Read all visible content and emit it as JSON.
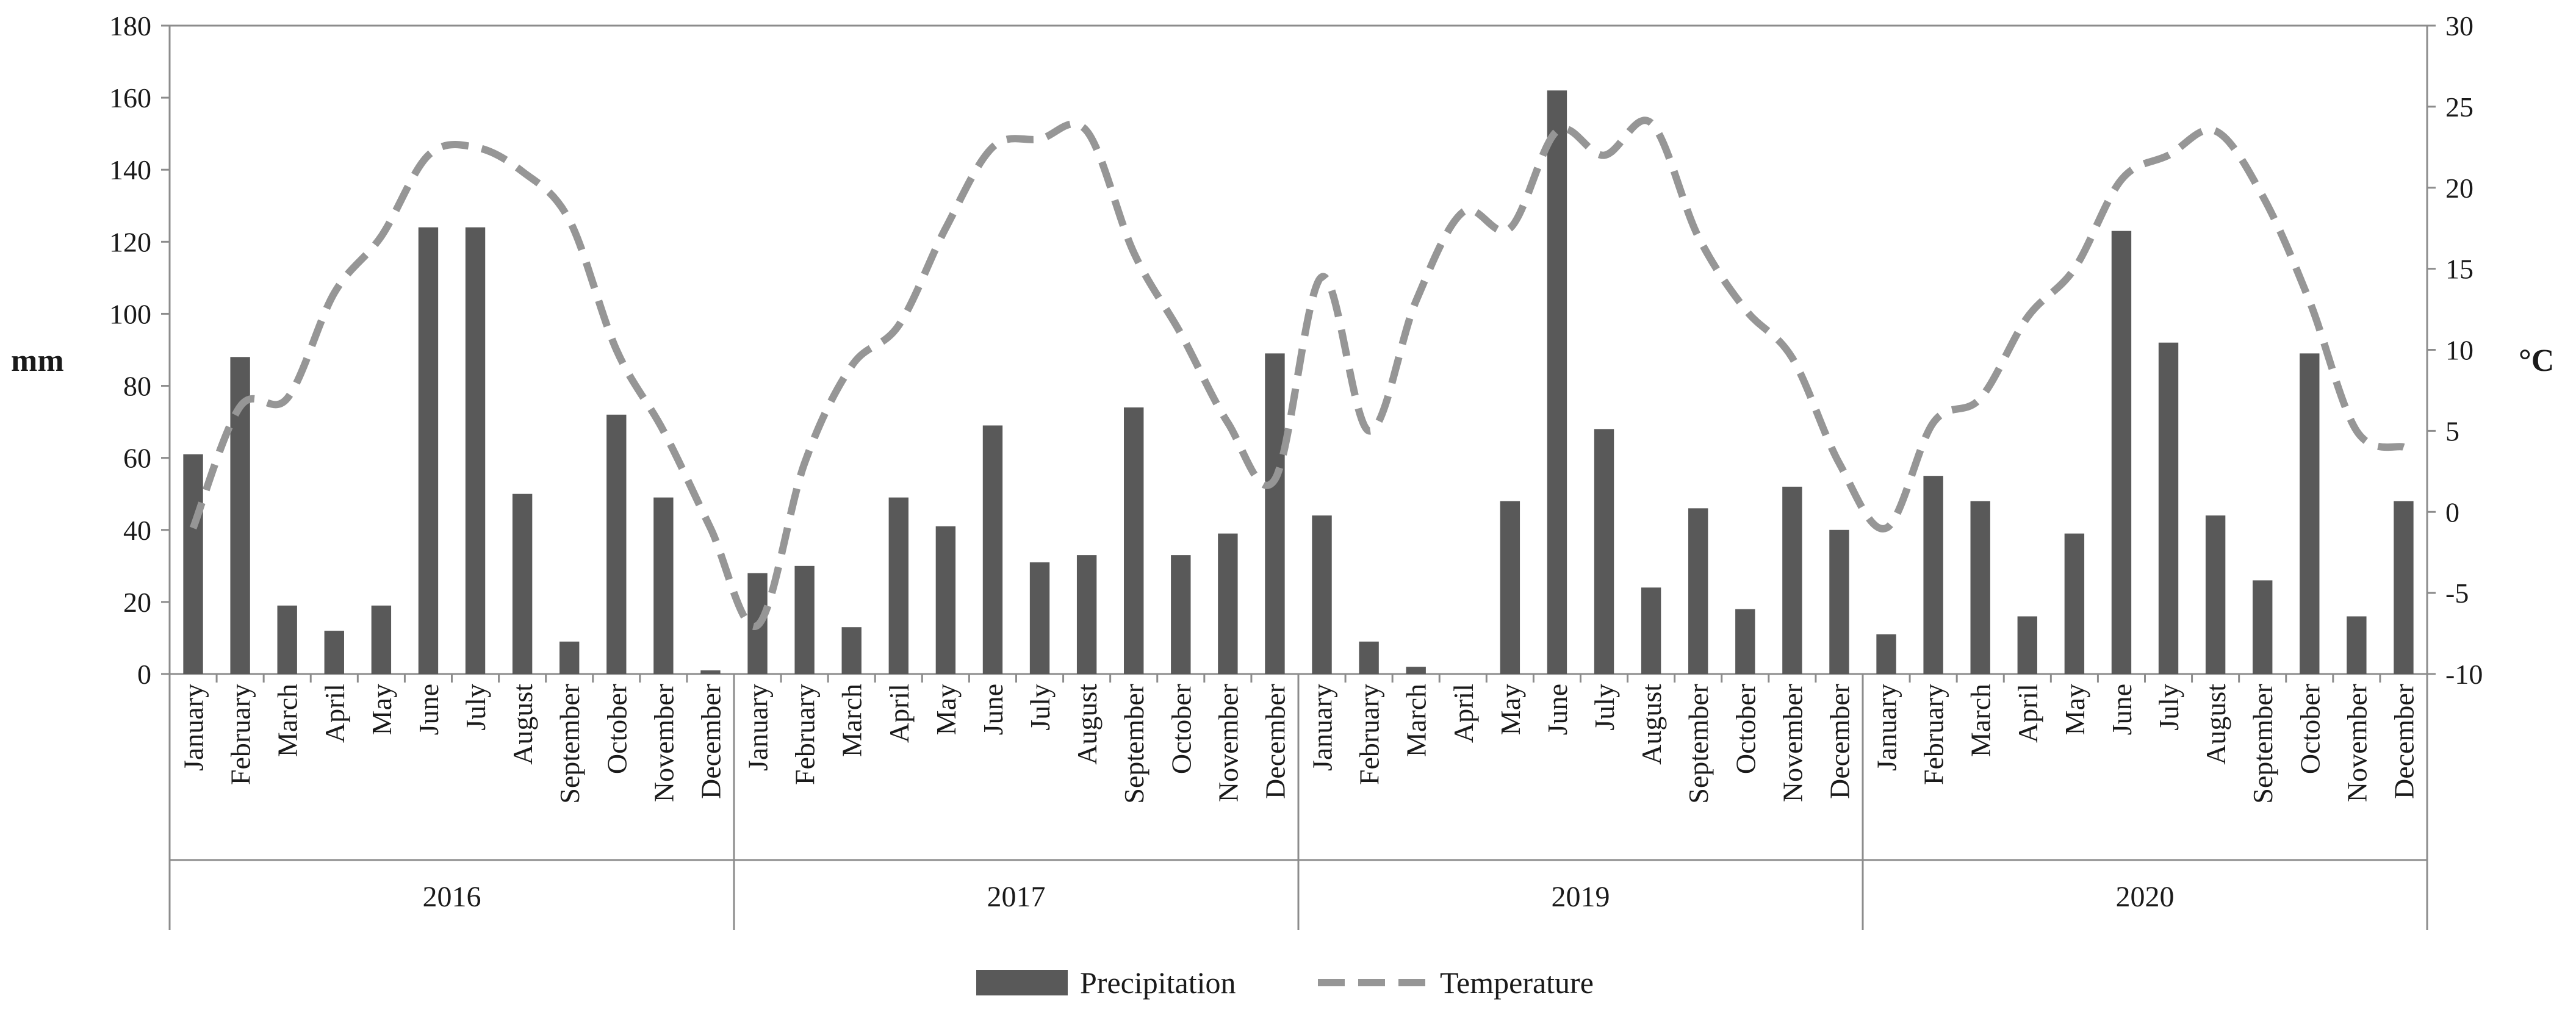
{
  "chart_data": {
    "type": "bar+line",
    "title": "",
    "ylabel_left": "mm",
    "ylabel_right": "°C",
    "ylim_left": [
      0,
      180
    ],
    "yticks_left": [
      0,
      20,
      40,
      60,
      80,
      100,
      120,
      140,
      160,
      180
    ],
    "ylim_right": [
      -10,
      30
    ],
    "yticks_right": [
      -10,
      -5,
      0,
      5,
      10,
      15,
      20,
      25,
      30
    ],
    "years": [
      "2016",
      "2017",
      "2019",
      "2020"
    ],
    "months": [
      "January",
      "February",
      "March",
      "April",
      "May",
      "June",
      "July",
      "August",
      "September",
      "October",
      "November",
      "December"
    ],
    "series": [
      {
        "name": "Precipitation",
        "kind": "bar",
        "axis": "left",
        "color": "#595959",
        "values": [
          61,
          88,
          19,
          12,
          19,
          124,
          124,
          50,
          9,
          72,
          49,
          1,
          28,
          30,
          13,
          49,
          41,
          69,
          31,
          33,
          74,
          33,
          39,
          89,
          44,
          9,
          2,
          0,
          48,
          162,
          68,
          24,
          46,
          18,
          52,
          40,
          11,
          55,
          48,
          16,
          39,
          123,
          92,
          44,
          26,
          89,
          16,
          48
        ]
      },
      {
        "name": "Temperature",
        "kind": "line",
        "axis": "right",
        "color": "#969696",
        "dash": "dashed",
        "values": [
          -1,
          6.5,
          7,
          13.5,
          17,
          22,
          22.5,
          21,
          18,
          10,
          5,
          -1,
          -7,
          3,
          9,
          11.5,
          17.5,
          22.5,
          23,
          23.5,
          16,
          11,
          5.5,
          2,
          14.5,
          5,
          13,
          18.5,
          17.5,
          23.5,
          22,
          24,
          17,
          12.5,
          9.5,
          3,
          -1,
          5.5,
          7,
          12,
          15,
          20.5,
          22,
          23.5,
          19.5,
          13,
          5,
          4
        ]
      }
    ],
    "legend": {
      "position": "bottom-center",
      "entries": [
        "Precipitation",
        "Temperature"
      ]
    }
  }
}
